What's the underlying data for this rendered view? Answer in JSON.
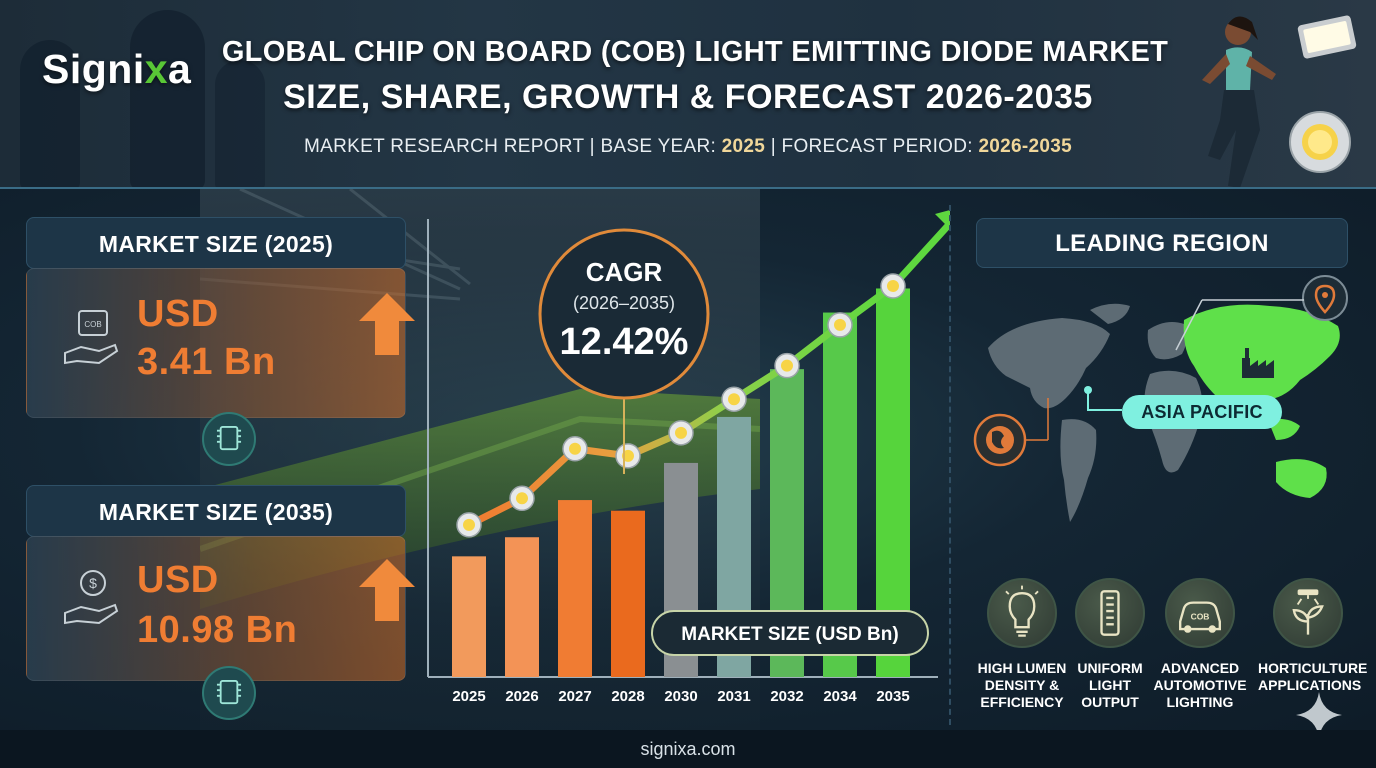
{
  "brand": {
    "name_main": "Signi",
    "name_accent": "x",
    "name_tail": "a"
  },
  "header": {
    "title_line1": "GLOBAL CHIP ON BOARD (COB) LIGHT EMITTING DIODE MARKET",
    "title_line2": "SIZE, SHARE, GROWTH & FORECAST 2026-2035",
    "subtitle_prefix": "MARKET RESEARCH REPORT | BASE YEAR: ",
    "base_year": "2025",
    "subtitle_mid": " | FORECAST PERIOD: ",
    "forecast_period": "2026-2035"
  },
  "cards": {
    "size_2025": {
      "label": "MARKET SIZE (2025)",
      "currency": "USD",
      "value": "3.41 Bn"
    },
    "size_2035": {
      "label": "MARKET SIZE (2035)",
      "currency": "USD",
      "value": "10.98 Bn"
    }
  },
  "chart_data": {
    "type": "bar",
    "categories": [
      "2025",
      "2026",
      "2027",
      "2028",
      "2030",
      "2031",
      "2032",
      "2034",
      "2035"
    ],
    "values": [
      3.41,
      3.95,
      5.0,
      4.7,
      6.05,
      7.35,
      8.7,
      10.3,
      10.98
    ],
    "line_values": [
      4.3,
      5.05,
      6.45,
      6.25,
      6.9,
      7.85,
      8.8,
      9.95,
      11.05
    ],
    "bar_colors": [
      "#f29a5c",
      "#f39356",
      "#f07c33",
      "#ea6a1e",
      "#8a8f92",
      "#7fa6a2",
      "#5cb85a",
      "#57c94a",
      "#56d43c"
    ],
    "legend": "MARKET SIZE (USD Bn)",
    "cagr": {
      "title": "CAGR",
      "period": "(2026–2035)",
      "value": "12.42%"
    },
    "ylim": [
      0,
      13
    ]
  },
  "region": {
    "label": "LEADING REGION",
    "name": "ASIA PACIFIC",
    "highlight_color": "#5fe04a"
  },
  "features": [
    {
      "icon": "lightbulb-icon",
      "label": "HIGH LUMEN\nDENSITY &\nEFFICIENCY"
    },
    {
      "icon": "led-strip-icon",
      "label": "UNIFORM\nLIGHT\nOUTPUT"
    },
    {
      "icon": "car-icon",
      "label": "ADVANCED\nAUTOMOTIVE\nLIGHTING"
    },
    {
      "icon": "plant-icon",
      "label": "HORTICULTURE\nAPPLICATIONS"
    }
  ],
  "feature_badge": "COB",
  "footer": {
    "url": "signixa.com"
  }
}
